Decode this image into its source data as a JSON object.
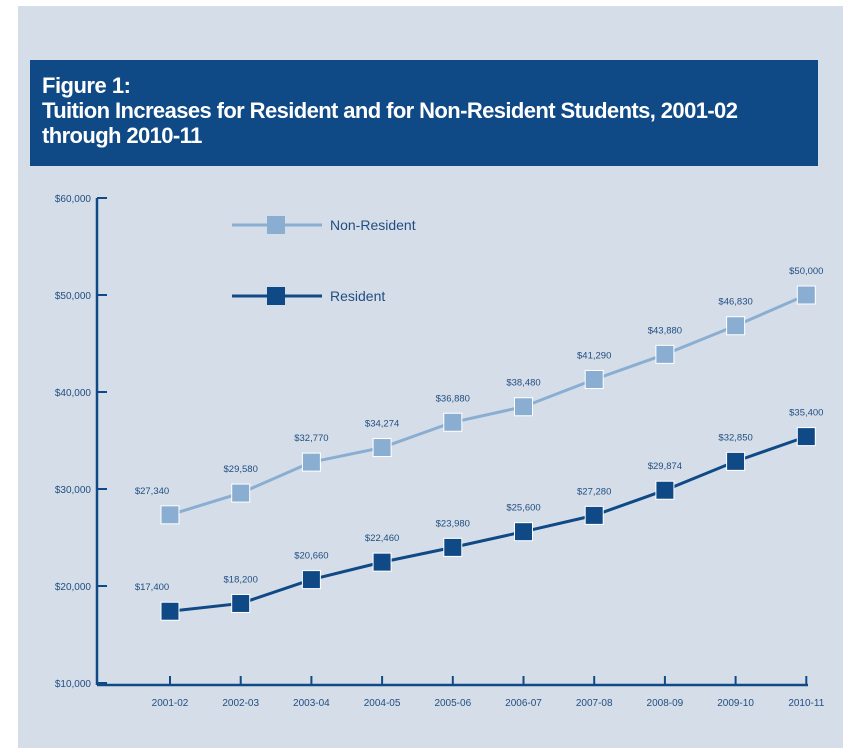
{
  "figure_label": "Figure 1:",
  "title": "Tuition Increases for Resident and for Non-Resident Students, 2001-02 through 2010-11",
  "colors": {
    "background": "#d5dee8",
    "title_band": "#0f4a86",
    "axis": "#0f4a86",
    "non_resident": "#8aaed2",
    "resident": "#0f4a86"
  },
  "chart_data": {
    "type": "line",
    "title": "Tuition Increases for Resident and for Non-Resident Students, 2001-02 through 2010-11",
    "categories": [
      "2001-02",
      "2002-03",
      "2003-04",
      "2004-05",
      "2005-06",
      "2006-07",
      "2007-08",
      "2008-09",
      "2009-10",
      "2010-11"
    ],
    "y_ticks": [
      "$60,000",
      "$50,000",
      "$40,000",
      "$30,000",
      "$20,000",
      "$10,000"
    ],
    "ylim": [
      10000,
      60000
    ],
    "grid": false,
    "legend_position": "top-left",
    "series": [
      {
        "name": "Non-Resident",
        "color": "#8aaed2",
        "marker": "square",
        "values": [
          27340,
          29580,
          32770,
          34274,
          36880,
          38480,
          41290,
          43880,
          46830,
          50000
        ],
        "labels": [
          "$27,340",
          "$29,580",
          "$32,770",
          "$34,274",
          "$36,880",
          "$38,480",
          "$41,290",
          "$43,880",
          "$46,830",
          "$50,000"
        ]
      },
      {
        "name": "Resident",
        "color": "#0f4a86",
        "marker": "square",
        "values": [
          17400,
          18200,
          20660,
          22460,
          23980,
          25600,
          27280,
          29874,
          32850,
          35400
        ],
        "labels": [
          "$17,400",
          "$18,200",
          "$20,660",
          "$22,460",
          "$23,980",
          "$25,600",
          "$27,280",
          "$29,874",
          "$32,850",
          "$35,400"
        ]
      }
    ]
  }
}
